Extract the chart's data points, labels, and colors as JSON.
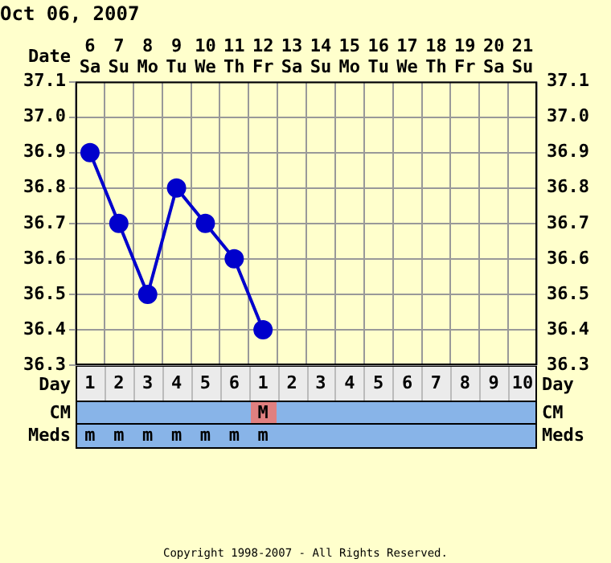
{
  "chart_data": [
    {
      "type": "line",
      "title": "Oct 06, 2007",
      "xlabel": "Day",
      "x2label": "Date",
      "categories": [
        "1",
        "2",
        "3",
        "4",
        "5",
        "6",
        "1",
        "2",
        "3",
        "4",
        "5",
        "6",
        "7",
        "8",
        "9",
        "10"
      ],
      "x2lim": [
        "2007-10-05T12:00",
        "2007-10-21T12:00"
      ],
      "x2ticks": [
        {
          "value": "2007-10-06",
          "label": "6 Sa"
        },
        {
          "value": "2007-10-07",
          "label": "7 Su"
        },
        {
          "value": "2007-10-08",
          "label": "8 Mo"
        },
        {
          "value": "2007-10-09",
          "label": "9 Tu"
        },
        {
          "value": "2007-10-10",
          "label": "10 We"
        },
        {
          "value": "2007-10-11",
          "label": "11 Th"
        },
        {
          "value": "2007-10-12",
          "label": "12 Fr"
        },
        {
          "value": "2007-10-13",
          "label": "13 Sa"
        },
        {
          "value": "2007-10-14",
          "label": "14 Su"
        },
        {
          "value": "2007-10-15",
          "label": "15 Mo"
        },
        {
          "value": "2007-10-16",
          "label": "16 Tu"
        },
        {
          "value": "2007-10-17",
          "label": "17 We"
        },
        {
          "value": "2007-10-18",
          "label": "18 Th"
        },
        {
          "value": "2007-10-19",
          "label": "19 Fr"
        },
        {
          "value": "2007-10-20",
          "label": "20 Sa"
        },
        {
          "value": "2007-10-21",
          "label": "21 Su"
        }
      ],
      "series": [
        {
          "color": "#0000cc",
          "values": [
            36.9,
            36.7,
            36.5,
            36.8,
            36.7,
            36.6,
            36.4,
            null,
            null,
            null,
            null,
            null,
            null,
            null,
            null,
            null
          ]
        }
      ],
      "ylim": [
        36.3,
        37.1
      ],
      "yticks": [
        36.3,
        36.4,
        36.5,
        36.6,
        36.7,
        36.8,
        36.9,
        {
          "value": 37.0,
          "label": "37.0"
        },
        37.1
      ],
      "y2lim": [
        36.3,
        37.1
      ],
      "y2ticks": [
        36.3,
        36.4,
        36.5,
        36.6,
        36.7,
        36.8,
        36.9,
        {
          "value": 37.0,
          "label": "37.0"
        },
        37.1
      ],
      "grid": true,
      "legend": false,
      "marker": "circle",
      "line_style": "solid"
    },
    {
      "type": "other",
      "y_categories": [
        "CM",
        "Meds"
      ],
      "y2_categories": [
        "CM",
        "Meds"
      ],
      "cell_labels": [
        [
          null,
          null,
          null,
          null,
          null,
          null,
          "M",
          null,
          null,
          null,
          null,
          null,
          null,
          null,
          null,
          null
        ],
        [
          "m",
          "m",
          "m",
          "m",
          "m",
          "m",
          "m",
          null,
          null,
          null,
          null,
          null,
          null,
          null,
          null,
          null
        ]
      ],
      "annotations": [
        "Copyright 1998-2007 - All Rights Reserved."
      ]
    }
  ]
}
